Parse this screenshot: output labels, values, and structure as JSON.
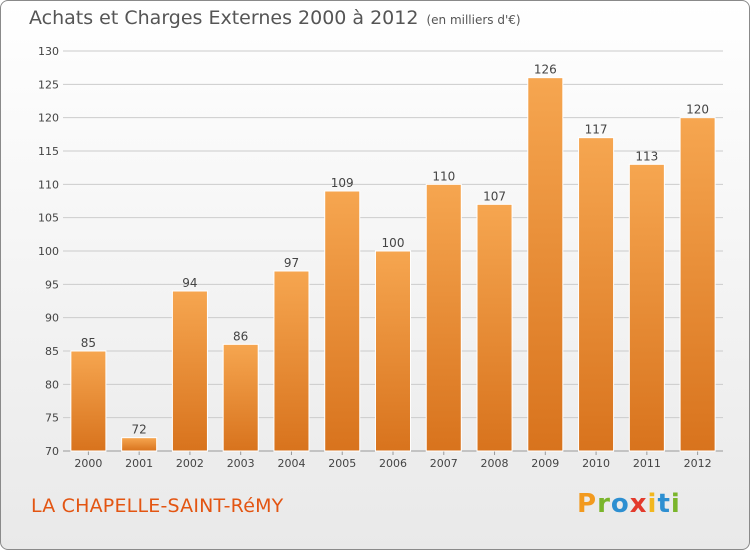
{
  "header": {
    "title": "Achats et Charges Externes 2000 à 2012",
    "unit_note": "(en milliers d'€)"
  },
  "footer": {
    "place_name": "LA CHAPELLE-SAINT-RéMY",
    "brand_letters": [
      "P",
      "r",
      "o",
      "x",
      "i",
      "t",
      "i"
    ],
    "brand_colors": [
      "#f29a1f",
      "#7ab52b",
      "#2d8fd1",
      "#e33a2c",
      "#f2b71f",
      "#2d8fd1",
      "#7ab52b"
    ]
  },
  "colors": {
    "bar_top": "#f6a650",
    "bar_bottom": "#d8731d",
    "grid": "#cccccc",
    "axis_text": "#444444",
    "place_text": "#e35512"
  },
  "chart_data": {
    "type": "bar",
    "title": "Achats et Charges Externes 2000 à 2012",
    "subtitle": "(en milliers d'€)",
    "categories": [
      "2000",
      "2001",
      "2002",
      "2003",
      "2004",
      "2005",
      "2006",
      "2007",
      "2008",
      "2009",
      "2010",
      "2011",
      "2012"
    ],
    "values": [
      85,
      72,
      94,
      86,
      97,
      109,
      100,
      110,
      107,
      126,
      117,
      113,
      120
    ],
    "ylim": [
      70,
      130
    ],
    "yticks": [
      70,
      75,
      80,
      85,
      90,
      95,
      100,
      105,
      110,
      115,
      120,
      125,
      130
    ],
    "grid": true,
    "xlabel": "",
    "ylabel": ""
  }
}
